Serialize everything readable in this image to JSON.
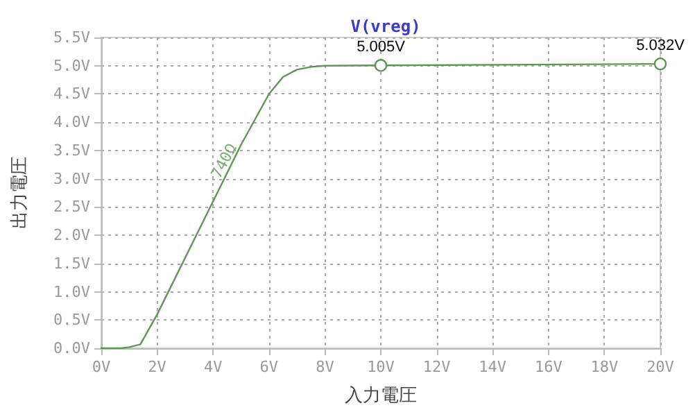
{
  "chart_data": {
    "type": "line",
    "title": "V(vreg)",
    "xlabel": "入力電圧",
    "ylabel": "出力電圧",
    "x": [
      0,
      0.7,
      1.0,
      1.4,
      2,
      3,
      4,
      5,
      6,
      6.5,
      7,
      7.5,
      8,
      10,
      20
    ],
    "series": [
      {
        "color": "#5a9a50",
        "values": [
          0,
          0,
          0.02,
          0.07,
          0.6,
          1.6,
          2.6,
          3.6,
          4.5,
          4.8,
          4.93,
          4.98,
          5.0,
          5.005,
          5.032
        ],
        "value_labels": [
          null,
          null,
          null,
          null,
          null,
          null,
          null,
          null,
          null,
          null,
          null,
          null,
          null,
          "5.005V",
          "5.032V"
        ]
      }
    ],
    "annotations": [
      {
        "text": "740Ω",
        "x": 4.8,
        "y": 3.6
      }
    ],
    "xlim": [
      0,
      20
    ],
    "xticks": [
      {
        "value": 0,
        "label": "0V"
      },
      {
        "value": 2,
        "label": "2V"
      },
      {
        "value": 4,
        "label": "4V"
      },
      {
        "value": 6,
        "label": "6V"
      },
      {
        "value": 8,
        "label": "8V"
      },
      {
        "value": 10,
        "label": "10V"
      },
      {
        "value": 12,
        "label": "12V"
      },
      {
        "value": 14,
        "label": "14V"
      },
      {
        "value": 16,
        "label": "16V"
      },
      {
        "value": 18,
        "label": "18V"
      },
      {
        "value": 20,
        "label": "20V"
      }
    ],
    "ylim": [
      0,
      5.5
    ],
    "yticks": [
      {
        "value": 0,
        "label": "0.0V"
      },
      {
        "value": 0.5,
        "label": "0.5V"
      },
      {
        "value": 1,
        "label": "1.0V"
      },
      {
        "value": 1.5,
        "label": "1.5V"
      },
      {
        "value": 2,
        "label": "2.0V"
      },
      {
        "value": 2.5,
        "label": "2.5V"
      },
      {
        "value": 3,
        "label": "3.0V"
      },
      {
        "value": 3.5,
        "label": "3.5V"
      },
      {
        "value": 4,
        "label": "4.0V"
      },
      {
        "value": 4.5,
        "label": "4.5V"
      },
      {
        "value": 5,
        "label": "5.0V"
      },
      {
        "value": 5.5,
        "label": "5.5V"
      }
    ],
    "grid": true,
    "line_style": "solid"
  }
}
